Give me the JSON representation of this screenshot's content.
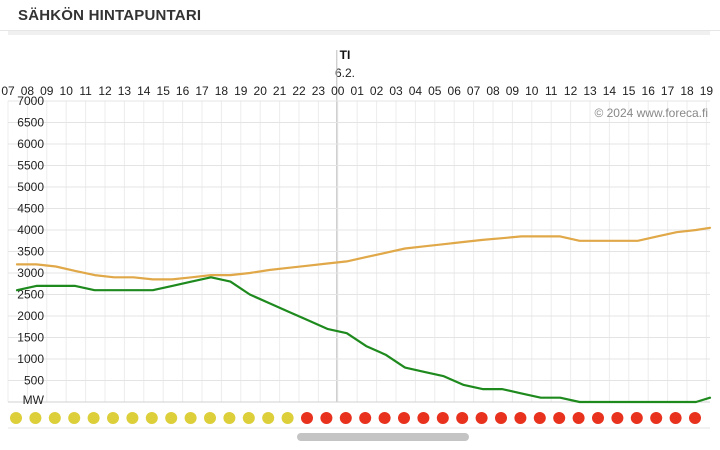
{
  "header": {
    "title": "SÄHKÖN HINTAPUNTARI"
  },
  "day": {
    "label": "TI",
    "date": "6.2."
  },
  "copyright": "© 2024 www.foreca.fi",
  "chart_data": {
    "type": "line",
    "x": [
      "07",
      "08",
      "09",
      "10",
      "11",
      "12",
      "13",
      "14",
      "15",
      "16",
      "17",
      "18",
      "19",
      "20",
      "21",
      "22",
      "23",
      "00",
      "01",
      "02",
      "03",
      "04",
      "05",
      "06",
      "07",
      "08",
      "09",
      "10",
      "11",
      "12",
      "13",
      "14",
      "15",
      "16",
      "17",
      "18",
      "19"
    ],
    "ylabel": "MW",
    "ylim": [
      0,
      7000
    ],
    "yticks": [
      500,
      1000,
      1500,
      2000,
      2500,
      3000,
      3500,
      4000,
      4500,
      5000,
      5500,
      6000,
      6500,
      7000
    ],
    "grid": true,
    "series": [
      {
        "color": "#e0a848",
        "values": [
          3200,
          3200,
          3150,
          3050,
          2950,
          2900,
          2900,
          2850,
          2850,
          2900,
          2950,
          2950,
          3000,
          3070,
          3120,
          3170,
          3220,
          3270,
          3370,
          3470,
          3570,
          3620,
          3670,
          3720,
          3770,
          3810,
          3850,
          3850,
          3850,
          3750,
          3750,
          3750,
          3750,
          3850,
          3950,
          4000,
          4050
        ]
      },
      {
        "color": "#1e8a1e",
        "values": [
          2600,
          2700,
          2700,
          2700,
          2600,
          2600,
          2600,
          2600,
          2700,
          2800,
          2900,
          2800,
          2500,
          2300,
          2100,
          1900,
          1700,
          1600,
          1300,
          1100,
          800,
          700,
          600,
          400,
          300,
          300,
          200,
          100,
          100,
          0,
          0,
          0,
          0,
          0,
          0,
          0,
          100
        ]
      }
    ],
    "price_indicators": [
      "yellow",
      "yellow",
      "yellow",
      "yellow",
      "yellow",
      "yellow",
      "yellow",
      "yellow",
      "yellow",
      "yellow",
      "yellow",
      "yellow",
      "yellow",
      "yellow",
      "yellow",
      "red",
      "red",
      "red",
      "red",
      "red",
      "red",
      "red",
      "red",
      "red",
      "red",
      "red",
      "red",
      "red",
      "red",
      "red",
      "red",
      "red",
      "red",
      "red",
      "red",
      "red",
      "red"
    ],
    "indicator_colors": {
      "yellow": "#dccf3a",
      "red": "#e8321e"
    }
  }
}
